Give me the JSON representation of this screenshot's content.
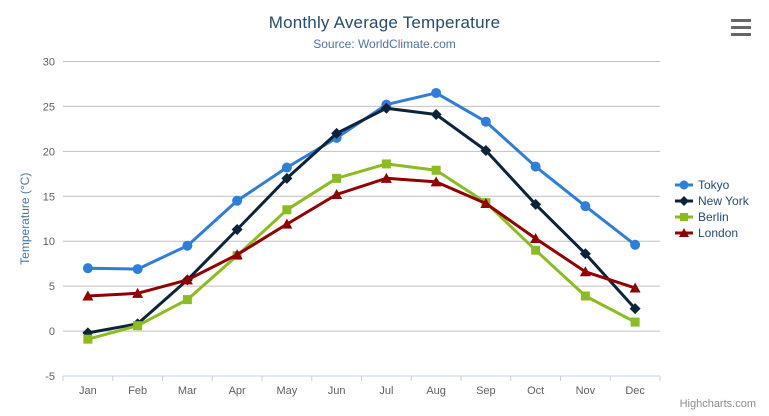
{
  "chart_data": {
    "type": "line",
    "title": "Monthly Average Temperature",
    "subtitle": "Source: WorldClimate.com",
    "xlabel": "",
    "ylabel": "Temperature (°C)",
    "ylim": [
      -5,
      30
    ],
    "ytick_interval": 5,
    "yticks": [
      -5,
      0,
      5,
      10,
      15,
      20,
      25,
      30
    ],
    "grid": true,
    "legend_position": "right",
    "categories": [
      "Jan",
      "Feb",
      "Mar",
      "Apr",
      "May",
      "Jun",
      "Jul",
      "Aug",
      "Sep",
      "Oct",
      "Nov",
      "Dec"
    ],
    "series": [
      {
        "name": "Tokyo",
        "color": "#2f7ed8",
        "marker": "circle",
        "values": [
          7.0,
          6.9,
          9.5,
          14.5,
          18.2,
          21.5,
          25.2,
          26.5,
          23.3,
          18.3,
          13.9,
          9.6
        ]
      },
      {
        "name": "New York",
        "color": "#0d233a",
        "marker": "diamond",
        "values": [
          -0.2,
          0.8,
          5.7,
          11.3,
          17.0,
          22.0,
          24.8,
          24.1,
          20.1,
          14.1,
          8.6,
          2.5
        ]
      },
      {
        "name": "Berlin",
        "color": "#8bbc21",
        "marker": "square",
        "values": [
          -0.9,
          0.6,
          3.5,
          8.4,
          13.5,
          17.0,
          18.6,
          17.9,
          14.3,
          9.0,
          3.9,
          1.0
        ]
      },
      {
        "name": "London",
        "color": "#910000",
        "marker": "triangle",
        "values": [
          3.9,
          4.2,
          5.7,
          8.5,
          11.9,
          15.2,
          17.0,
          16.6,
          14.2,
          10.3,
          6.6,
          4.8
        ]
      }
    ],
    "colors": {
      "title": "#274b6d",
      "subtitle": "#4d759e",
      "axis_title": "#4d759e",
      "axis_labels": "#606060",
      "gridline": "#c0c0c0",
      "axis_line": "#c0d0e0"
    }
  },
  "export_menu": {
    "icon": "hamburger-icon"
  },
  "credits": {
    "label": "Highcharts.com"
  }
}
